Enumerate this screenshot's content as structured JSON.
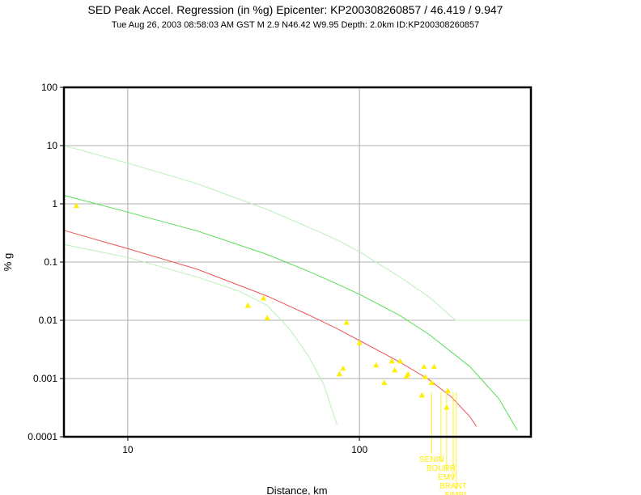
{
  "header": {
    "title": "SED Peak Accel. Regression (in %g) Epicenter: KP200308260857 / 46.419 / 9.947",
    "subtitle": "Tue Aug 26, 2003 08:58:03 AM GST   M 2.9   N46.42 W9.95   Depth: 2.0km   ID:KP200308260857"
  },
  "chart_data": {
    "type": "scatter",
    "xlabel": "Distance, km",
    "ylabel": "% g",
    "x_scale": "log",
    "y_scale": "log",
    "xlim": [
      5.3,
      550
    ],
    "ylim": [
      0.0001,
      100
    ],
    "grid": true,
    "x_ticks": [
      {
        "value": 10,
        "label": "10"
      },
      {
        "value": 100,
        "label": "100"
      }
    ],
    "y_ticks": [
      {
        "value": 100,
        "label": "100"
      },
      {
        "value": 10,
        "label": "10"
      },
      {
        "value": 1,
        "label": "1"
      },
      {
        "value": 0.1,
        "label": "0.1"
      },
      {
        "value": 0.01,
        "label": "0.01"
      },
      {
        "value": 0.001,
        "label": "0.001"
      },
      {
        "value": 0.0001,
        "label": "0.0001"
      }
    ],
    "colors": {
      "points": "#ffee00",
      "mean_curve": "#ee5555",
      "upper_curve": "#55dd55",
      "faint_curves": "#bbeebb",
      "grid": "#999999"
    },
    "points": [
      {
        "x": 6.0,
        "y": 0.93
      },
      {
        "x": 33,
        "y": 0.018
      },
      {
        "x": 38.5,
        "y": 0.024
      },
      {
        "x": 40,
        "y": 0.011
      },
      {
        "x": 82,
        "y": 0.0012
      },
      {
        "x": 85,
        "y": 0.0015
      },
      {
        "x": 88,
        "y": 0.0092
      },
      {
        "x": 100,
        "y": 0.0041
      },
      {
        "x": 118,
        "y": 0.0017
      },
      {
        "x": 128,
        "y": 0.00085
      },
      {
        "x": 138,
        "y": 0.002
      },
      {
        "x": 142,
        "y": 0.0014
      },
      {
        "x": 150,
        "y": 0.002
      },
      {
        "x": 160,
        "y": 0.0011
      },
      {
        "x": 162,
        "y": 0.0012
      },
      {
        "x": 186,
        "y": 0.00052
      },
      {
        "x": 190,
        "y": 0.0016
      },
      {
        "x": 192,
        "y": 0.00107
      },
      {
        "x": 205,
        "y": 0.00085
      },
      {
        "x": 210,
        "y": 0.0016
      },
      {
        "x": 238,
        "y": 0.00032
      },
      {
        "x": 241,
        "y": 0.00062
      }
    ],
    "curves": {
      "mean": [
        [
          5.3,
          0.35
        ],
        [
          10,
          0.17
        ],
        [
          20,
          0.075
        ],
        [
          40,
          0.026
        ],
        [
          60,
          0.0125
        ],
        [
          80,
          0.0072
        ],
        [
          100,
          0.0045
        ],
        [
          150,
          0.0019
        ],
        [
          200,
          0.00095
        ],
        [
          250,
          0.00048
        ],
        [
          300,
          0.00022
        ],
        [
          320,
          0.00015
        ]
      ],
      "upper": [
        [
          5.3,
          1.4
        ],
        [
          10,
          0.72
        ],
        [
          20,
          0.34
        ],
        [
          40,
          0.135
        ],
        [
          60,
          0.07
        ],
        [
          80,
          0.042
        ],
        [
          100,
          0.028
        ],
        [
          150,
          0.012
        ],
        [
          200,
          0.0057
        ],
        [
          300,
          0.0016
        ],
        [
          400,
          0.00045
        ],
        [
          480,
          0.00013
        ]
      ],
      "faint_upper": [
        [
          5.3,
          10
        ],
        [
          10,
          5.0
        ],
        [
          20,
          2.2
        ],
        [
          40,
          0.8
        ],
        [
          60,
          0.4
        ],
        [
          80,
          0.24
        ],
        [
          100,
          0.15
        ],
        [
          150,
          0.055
        ],
        [
          200,
          0.025
        ],
        [
          260,
          0.01
        ],
        [
          300,
          0.01
        ],
        [
          400,
          0.01
        ],
        [
          550,
          0.01
        ]
      ],
      "faint_lower": [
        [
          5.3,
          0.2
        ],
        [
          10,
          0.12
        ],
        [
          20,
          0.055
        ],
        [
          30,
          0.032
        ],
        [
          40,
          0.018
        ],
        [
          50,
          0.007
        ],
        [
          60,
          0.0025
        ],
        [
          70,
          0.0008
        ],
        [
          80,
          0.00016
        ]
      ]
    },
    "station_labels": [
      {
        "label": "SENIN",
        "x": 205
      },
      {
        "label": "BOURR",
        "x": 225
      },
      {
        "label": "EMV",
        "x": 238
      },
      {
        "label": "BRANT",
        "x": 254
      },
      {
        "label": "SIMPL",
        "x": 262
      }
    ]
  }
}
